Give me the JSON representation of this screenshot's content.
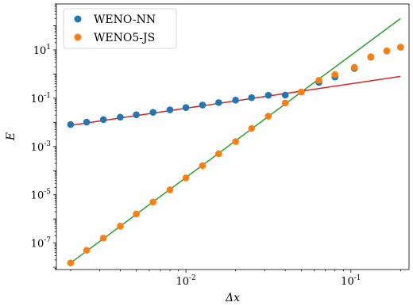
{
  "chart_data": {
    "type": "scatter",
    "xlabel": "Δx",
    "ylabel": "E",
    "xscale": "log",
    "yscale": "log",
    "xlim": [
      0.00164,
      0.225
    ],
    "ylim": [
      8e-09,
      800
    ],
    "x_ticks": [
      {
        "value": 0.01,
        "base": "10",
        "exp": "-2"
      },
      {
        "value": 0.1,
        "base": "10",
        "exp": "-1"
      }
    ],
    "y_ticks": [
      {
        "value": 1e-07,
        "base": "10",
        "exp": "-7"
      },
      {
        "value": 1e-05,
        "base": "10",
        "exp": "-5"
      },
      {
        "value": 0.001,
        "base": "10",
        "exp": "-3"
      },
      {
        "value": 0.1,
        "base": "10",
        "exp": "-1"
      },
      {
        "value": 10,
        "base": "10",
        "exp": "1"
      }
    ],
    "legend_position": "top-left",
    "series": [
      {
        "name": "WENO-NN",
        "kind": "scatter",
        "color": "#1f77b4",
        "x": [
          0.002,
          0.0025,
          0.00316,
          0.004,
          0.005,
          0.00632,
          0.008,
          0.01,
          0.0126,
          0.0158,
          0.02,
          0.025,
          0.0316,
          0.04,
          0.05,
          0.064,
          0.08,
          0.105,
          0.132,
          0.165,
          0.2
        ],
        "y": [
          0.0081,
          0.0102,
          0.013,
          0.0163,
          0.0205,
          0.026,
          0.033,
          0.041,
          0.052,
          0.066,
          0.083,
          0.105,
          0.132,
          0.135,
          0.18,
          0.45,
          0.75,
          1.7,
          5.0,
          9.0,
          13.0
        ]
      },
      {
        "name": "WENO5-JS",
        "kind": "scatter",
        "color": "#ff7f0e",
        "x": [
          0.002,
          0.0025,
          0.00316,
          0.004,
          0.005,
          0.00632,
          0.008,
          0.01,
          0.0126,
          0.0158,
          0.02,
          0.025,
          0.0316,
          0.04,
          0.05,
          0.064,
          0.08,
          0.105,
          0.132,
          0.165,
          0.2
        ],
        "y": [
          1.5e-08,
          5e-08,
          1.6e-07,
          5e-07,
          1.6e-06,
          5e-06,
          1.6e-05,
          5e-05,
          0.00016,
          0.0005,
          0.0016,
          0.0056,
          0.018,
          0.063,
          0.18,
          0.55,
          0.95,
          1.9,
          5.2,
          9.2,
          13.0
        ]
      },
      {
        "kind": "line",
        "color": "#d62728",
        "x": [
          0.002,
          0.2
        ],
        "y": [
          0.0075,
          0.8
        ]
      },
      {
        "kind": "line",
        "color": "#2ca02c",
        "x": [
          0.002,
          0.2
        ],
        "y": [
          1.5e-08,
          200
        ]
      }
    ]
  }
}
